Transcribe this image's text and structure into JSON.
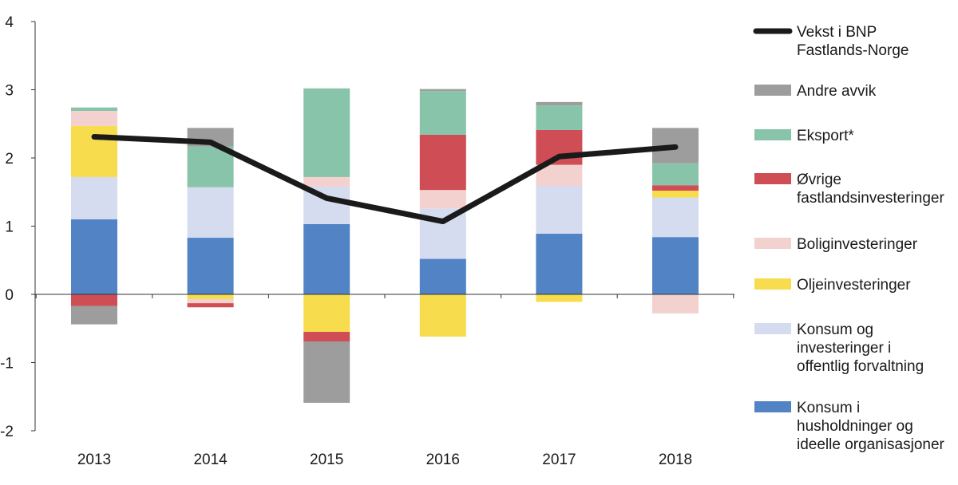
{
  "chart_data": {
    "type": "bar",
    "stacked": true,
    "categories": [
      "2013",
      "2014",
      "2015",
      "2016",
      "2017",
      "2018"
    ],
    "ylim": [
      -2,
      4
    ],
    "yticks": [
      "4",
      "3",
      "2",
      "1",
      "0",
      "-1",
      "-2"
    ],
    "ytick_values": [
      4,
      3,
      2,
      1,
      0,
      -1,
      -2
    ],
    "series": [
      {
        "name": "Konsum i husholdninger og ideelle organisasjoner",
        "legend_lines": [
          "Konsum i",
          "husholdninger og",
          "ideelle organisasjoner"
        ],
        "color": "#5283c4",
        "values": [
          1.1,
          0.83,
          1.03,
          0.52,
          0.89,
          0.84
        ]
      },
      {
        "name": "Konsum og investeringer i offentlig forvaltning",
        "legend_lines": [
          "Konsum og",
          "investeringer i",
          "offentlig forvaltning"
        ],
        "color": "#d5dcf0",
        "values": [
          0.62,
          0.74,
          0.55,
          0.74,
          0.7,
          0.58
        ]
      },
      {
        "name": "Oljeinvesteringer",
        "legend_lines": [
          "Oljeinvesteringer"
        ],
        "color": "#f7dc4d",
        "values": [
          0.75,
          -0.07,
          -0.55,
          -0.62,
          -0.11,
          0.1
        ]
      },
      {
        "name": "Boliginvesteringer",
        "legend_lines": [
          "Boliginvesteringer"
        ],
        "color": "#f2d1cf",
        "values": [
          0.22,
          -0.06,
          0.14,
          0.27,
          0.31,
          -0.28
        ]
      },
      {
        "name": "Øvrige fastlandsinvesteringer",
        "legend_lines": [
          "Øvrige",
          "fastlandsinvesteringer"
        ],
        "color": "#cf4d55",
        "values": [
          -0.17,
          -0.06,
          -0.14,
          0.81,
          0.51,
          0.08
        ]
      },
      {
        "name": "Eksport*",
        "legend_lines": [
          "Eksport*"
        ],
        "color": "#88c4aa",
        "values": [
          0.05,
          0.6,
          1.3,
          0.64,
          0.36,
          0.32
        ]
      },
      {
        "name": "Andre avvik",
        "legend_lines": [
          "Andre avvik"
        ],
        "color": "#9d9d9d",
        "values": [
          -0.27,
          0.27,
          -0.9,
          0.03,
          0.05,
          0.52
        ]
      }
    ],
    "line": {
      "name": "Vekst i BNP Fastlands-Norge",
      "legend_lines": [
        "Vekst i BNP",
        "Fastlands-Norge"
      ],
      "color": "#1a1a1a",
      "values": [
        2.31,
        2.23,
        1.41,
        1.07,
        2.02,
        2.16
      ]
    },
    "legend_order": [
      "line",
      6,
      5,
      4,
      3,
      2,
      1,
      0
    ],
    "legend_position": "right",
    "grid": false
  }
}
